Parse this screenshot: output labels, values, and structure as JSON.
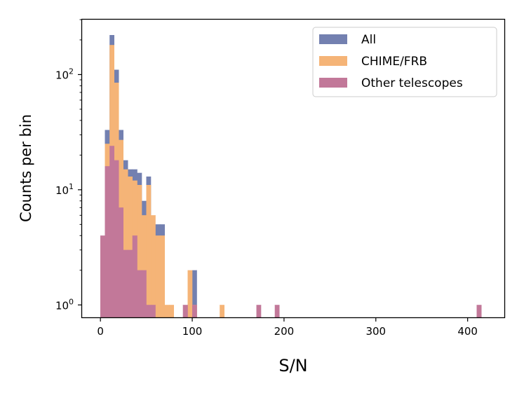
{
  "chart_data": {
    "type": "bar",
    "subtype": "stacked-overlay-histogram",
    "xlabel": "S/N",
    "ylabel": "Counts per bin",
    "xlim": [
      -20,
      440
    ],
    "ylim": [
      0.78,
      300
    ],
    "yscale": "log",
    "bin_width": 5,
    "x_ticks": [
      0,
      100,
      200,
      300,
      400
    ],
    "x_tick_labels": [
      "0",
      "100",
      "200",
      "300",
      "400"
    ],
    "y_ticks": [
      1,
      10,
      100
    ],
    "y_tick_labels": [
      "10",
      "10",
      "10"
    ],
    "y_tick_exponents": [
      "0",
      "1",
      "2"
    ],
    "legend_position": "top-right",
    "grid": false,
    "series": [
      {
        "name": "All",
        "color": "#7380b0",
        "bins": [
          {
            "x0": 5,
            "x1": 10,
            "count": 33
          },
          {
            "x0": 10,
            "x1": 15,
            "count": 220
          },
          {
            "x0": 15,
            "x1": 20,
            "count": 110
          },
          {
            "x0": 20,
            "x1": 25,
            "count": 33
          },
          {
            "x0": 25,
            "x1": 30,
            "count": 18
          },
          {
            "x0": 30,
            "x1": 35,
            "count": 15
          },
          {
            "x0": 35,
            "x1": 40,
            "count": 15
          },
          {
            "x0": 40,
            "x1": 45,
            "count": 14
          },
          {
            "x0": 45,
            "x1": 50,
            "count": 8
          },
          {
            "x0": 50,
            "x1": 55,
            "count": 13
          },
          {
            "x0": 60,
            "x1": 65,
            "count": 5
          },
          {
            "x0": 65,
            "x1": 70,
            "count": 5
          },
          {
            "x0": 100,
            "x1": 105,
            "count": 2
          }
        ]
      },
      {
        "name": "CHIME/FRB",
        "color": "#f5b477",
        "bins": [
          {
            "x0": 5,
            "x1": 10,
            "count": 25
          },
          {
            "x0": 10,
            "x1": 15,
            "count": 180
          },
          {
            "x0": 15,
            "x1": 20,
            "count": 85
          },
          {
            "x0": 20,
            "x1": 25,
            "count": 27
          },
          {
            "x0": 25,
            "x1": 30,
            "count": 15
          },
          {
            "x0": 30,
            "x1": 35,
            "count": 13
          },
          {
            "x0": 35,
            "x1": 40,
            "count": 12
          },
          {
            "x0": 40,
            "x1": 45,
            "count": 11
          },
          {
            "x0": 45,
            "x1": 50,
            "count": 6
          },
          {
            "x0": 50,
            "x1": 55,
            "count": 11
          },
          {
            "x0": 55,
            "x1": 60,
            "count": 6
          },
          {
            "x0": 60,
            "x1": 65,
            "count": 4
          },
          {
            "x0": 65,
            "x1": 70,
            "count": 4
          },
          {
            "x0": 70,
            "x1": 75,
            "count": 1
          },
          {
            "x0": 75,
            "x1": 80,
            "count": 1
          },
          {
            "x0": 95,
            "x1": 100,
            "count": 2
          },
          {
            "x0": 100,
            "x1": 105,
            "count": 1
          },
          {
            "x0": 130,
            "x1": 135,
            "count": 1
          }
        ]
      },
      {
        "name": "Other telescopes",
        "color": "#c27899",
        "bins": [
          {
            "x0": 0,
            "x1": 5,
            "count": 4
          },
          {
            "x0": 5,
            "x1": 10,
            "count": 16
          },
          {
            "x0": 10,
            "x1": 15,
            "count": 24
          },
          {
            "x0": 15,
            "x1": 20,
            "count": 18
          },
          {
            "x0": 20,
            "x1": 25,
            "count": 7
          },
          {
            "x0": 25,
            "x1": 30,
            "count": 3
          },
          {
            "x0": 30,
            "x1": 35,
            "count": 3
          },
          {
            "x0": 35,
            "x1": 40,
            "count": 4
          },
          {
            "x0": 40,
            "x1": 45,
            "count": 2
          },
          {
            "x0": 45,
            "x1": 50,
            "count": 2
          },
          {
            "x0": 50,
            "x1": 55,
            "count": 1
          },
          {
            "x0": 55,
            "x1": 60,
            "count": 1
          },
          {
            "x0": 90,
            "x1": 95,
            "count": 1
          },
          {
            "x0": 100,
            "x1": 105,
            "count": 1
          },
          {
            "x0": 170,
            "x1": 175,
            "count": 1
          },
          {
            "x0": 190,
            "x1": 195,
            "count": 1
          },
          {
            "x0": 410,
            "x1": 415,
            "count": 1
          }
        ]
      }
    ]
  }
}
